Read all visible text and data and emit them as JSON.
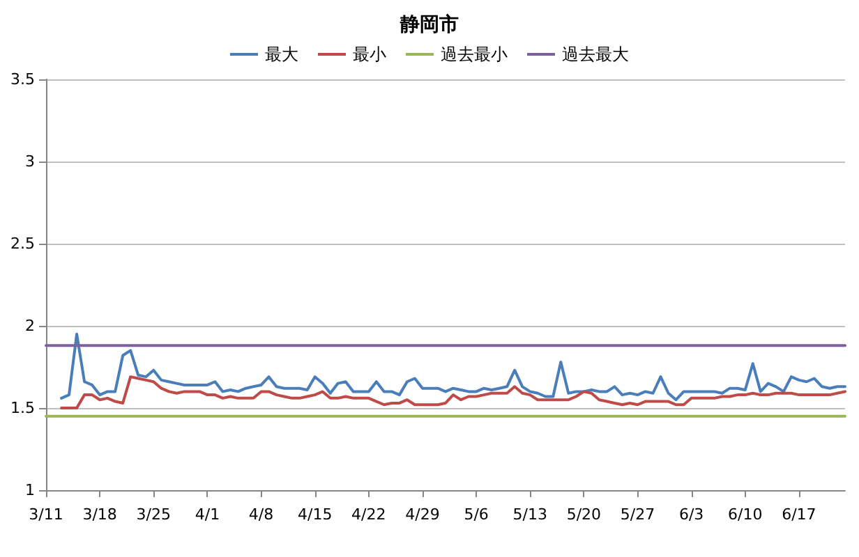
{
  "chart_data": {
    "type": "line",
    "title": "静岡市",
    "x": [
      "--03-13",
      "--03-14",
      "--03-15",
      "--03-16",
      "--03-17",
      "--03-18",
      "--03-19",
      "--03-20",
      "--03-21",
      "--03-22",
      "--03-23",
      "--03-24",
      "--03-25",
      "--03-26",
      "--03-27",
      "--03-28",
      "--03-29",
      "--03-30",
      "--03-31",
      "--04-01",
      "--04-02",
      "--04-03",
      "--04-04",
      "--04-05",
      "--04-06",
      "--04-07",
      "--04-08",
      "--04-09",
      "--04-10",
      "--04-11",
      "--04-12",
      "--04-13",
      "--04-14",
      "--04-15",
      "--04-16",
      "--04-17",
      "--04-18",
      "--04-19",
      "--04-20",
      "--04-21",
      "--04-22",
      "--04-23",
      "--04-24",
      "--04-25",
      "--04-26",
      "--04-27",
      "--04-28",
      "--04-29",
      "--04-30",
      "--05-01",
      "--05-02",
      "--05-03",
      "--05-04",
      "--05-05",
      "--05-06",
      "--05-07",
      "--05-08",
      "--05-09",
      "--05-10",
      "--05-11",
      "--05-12",
      "--05-13",
      "--05-14",
      "--05-15",
      "--05-16",
      "--05-17",
      "--05-18",
      "--05-19",
      "--05-20",
      "--05-21",
      "--05-22",
      "--05-23",
      "--05-24",
      "--05-25",
      "--05-26",
      "--05-27",
      "--05-28",
      "--05-29",
      "--05-30",
      "--05-31",
      "--06-01",
      "--06-02",
      "--06-03",
      "--06-04",
      "--06-05",
      "--06-06",
      "--06-07",
      "--06-08",
      "--06-09",
      "--06-10",
      "--06-11",
      "--06-12",
      "--06-13",
      "--06-14",
      "--06-15",
      "--06-16",
      "--06-17",
      "--06-18",
      "--06-19",
      "--06-20",
      "--06-21",
      "--06-22",
      "--06-23"
    ],
    "series": [
      {
        "name": "最大",
        "color": "#4a7ebb",
        "values": [
          1.56,
          1.58,
          1.95,
          1.66,
          1.64,
          1.58,
          1.6,
          1.6,
          1.82,
          1.85,
          1.7,
          1.69,
          1.73,
          1.67,
          1.66,
          1.65,
          1.64,
          1.64,
          1.64,
          1.64,
          1.66,
          1.6,
          1.61,
          1.6,
          1.62,
          1.63,
          1.64,
          1.69,
          1.63,
          1.62,
          1.62,
          1.62,
          1.61,
          1.69,
          1.65,
          1.59,
          1.65,
          1.66,
          1.6,
          1.6,
          1.6,
          1.66,
          1.6,
          1.6,
          1.58,
          1.66,
          1.68,
          1.62,
          1.62,
          1.62,
          1.6,
          1.62,
          1.61,
          1.6,
          1.6,
          1.62,
          1.61,
          1.62,
          1.63,
          1.73,
          1.63,
          1.6,
          1.59,
          1.57,
          1.57,
          1.78,
          1.59,
          1.6,
          1.6,
          1.61,
          1.6,
          1.6,
          1.63,
          1.58,
          1.59,
          1.58,
          1.6,
          1.59,
          1.69,
          1.59,
          1.55,
          1.6,
          1.6,
          1.6,
          1.6,
          1.6,
          1.59,
          1.62,
          1.62,
          1.61,
          1.77,
          1.6,
          1.65,
          1.63,
          1.6,
          1.69,
          1.67,
          1.66,
          1.68,
          1.63,
          1.62,
          1.63,
          1.63
        ]
      },
      {
        "name": "最小",
        "color": "#be4b48",
        "values": [
          1.5,
          1.5,
          1.5,
          1.58,
          1.58,
          1.55,
          1.56,
          1.54,
          1.53,
          1.69,
          1.68,
          1.67,
          1.66,
          1.62,
          1.6,
          1.59,
          1.6,
          1.6,
          1.6,
          1.58,
          1.58,
          1.56,
          1.57,
          1.56,
          1.56,
          1.56,
          1.6,
          1.6,
          1.58,
          1.57,
          1.56,
          1.56,
          1.57,
          1.58,
          1.6,
          1.56,
          1.56,
          1.57,
          1.56,
          1.56,
          1.56,
          1.54,
          1.52,
          1.53,
          1.53,
          1.55,
          1.52,
          1.52,
          1.52,
          1.52,
          1.53,
          1.58,
          1.55,
          1.57,
          1.57,
          1.58,
          1.59,
          1.59,
          1.59,
          1.63,
          1.59,
          1.58,
          1.55,
          1.55,
          1.55,
          1.55,
          1.55,
          1.57,
          1.6,
          1.59,
          1.55,
          1.54,
          1.53,
          1.52,
          1.53,
          1.52,
          1.54,
          1.54,
          1.54,
          1.54,
          1.52,
          1.52,
          1.56,
          1.56,
          1.56,
          1.56,
          1.57,
          1.57,
          1.58,
          1.58,
          1.59,
          1.58,
          1.58,
          1.59,
          1.59,
          1.59,
          1.58,
          1.58,
          1.58,
          1.58,
          1.58,
          1.59,
          1.6
        ]
      },
      {
        "name": "過去最小",
        "color": "#98b954",
        "x": [
          "--03-11",
          "--06-23"
        ],
        "values": [
          1.45,
          1.45
        ]
      },
      {
        "name": "過去最大",
        "color": "#7d60a0",
        "x": [
          "--03-11",
          "--06-23"
        ],
        "values": [
          1.88,
          1.88
        ]
      }
    ],
    "xlim": [
      "--03-11",
      "--06-23"
    ],
    "xticks": [
      {
        "value": "--03-11",
        "label": "3/11"
      },
      {
        "value": "--03-18",
        "label": "3/18"
      },
      {
        "value": "--03-25",
        "label": "3/25"
      },
      {
        "value": "--04-01",
        "label": "4/1"
      },
      {
        "value": "--04-08",
        "label": "4/8"
      },
      {
        "value": "--04-15",
        "label": "4/15"
      },
      {
        "value": "--04-22",
        "label": "4/22"
      },
      {
        "value": "--04-29",
        "label": "4/29"
      },
      {
        "value": "--05-06",
        "label": "5/6"
      },
      {
        "value": "--05-13",
        "label": "5/13"
      },
      {
        "value": "--05-20",
        "label": "5/20"
      },
      {
        "value": "--05-27",
        "label": "5/27"
      },
      {
        "value": "--06-03",
        "label": "6/3"
      },
      {
        "value": "--06-10",
        "label": "6/10"
      },
      {
        "value": "--06-17",
        "label": "6/17"
      }
    ],
    "ylim": [
      1,
      3.5
    ],
    "yticks": [
      1,
      1.5,
      2,
      2.5,
      3,
      3.5
    ],
    "grid": "y",
    "legend": "top",
    "marker": "none"
  }
}
